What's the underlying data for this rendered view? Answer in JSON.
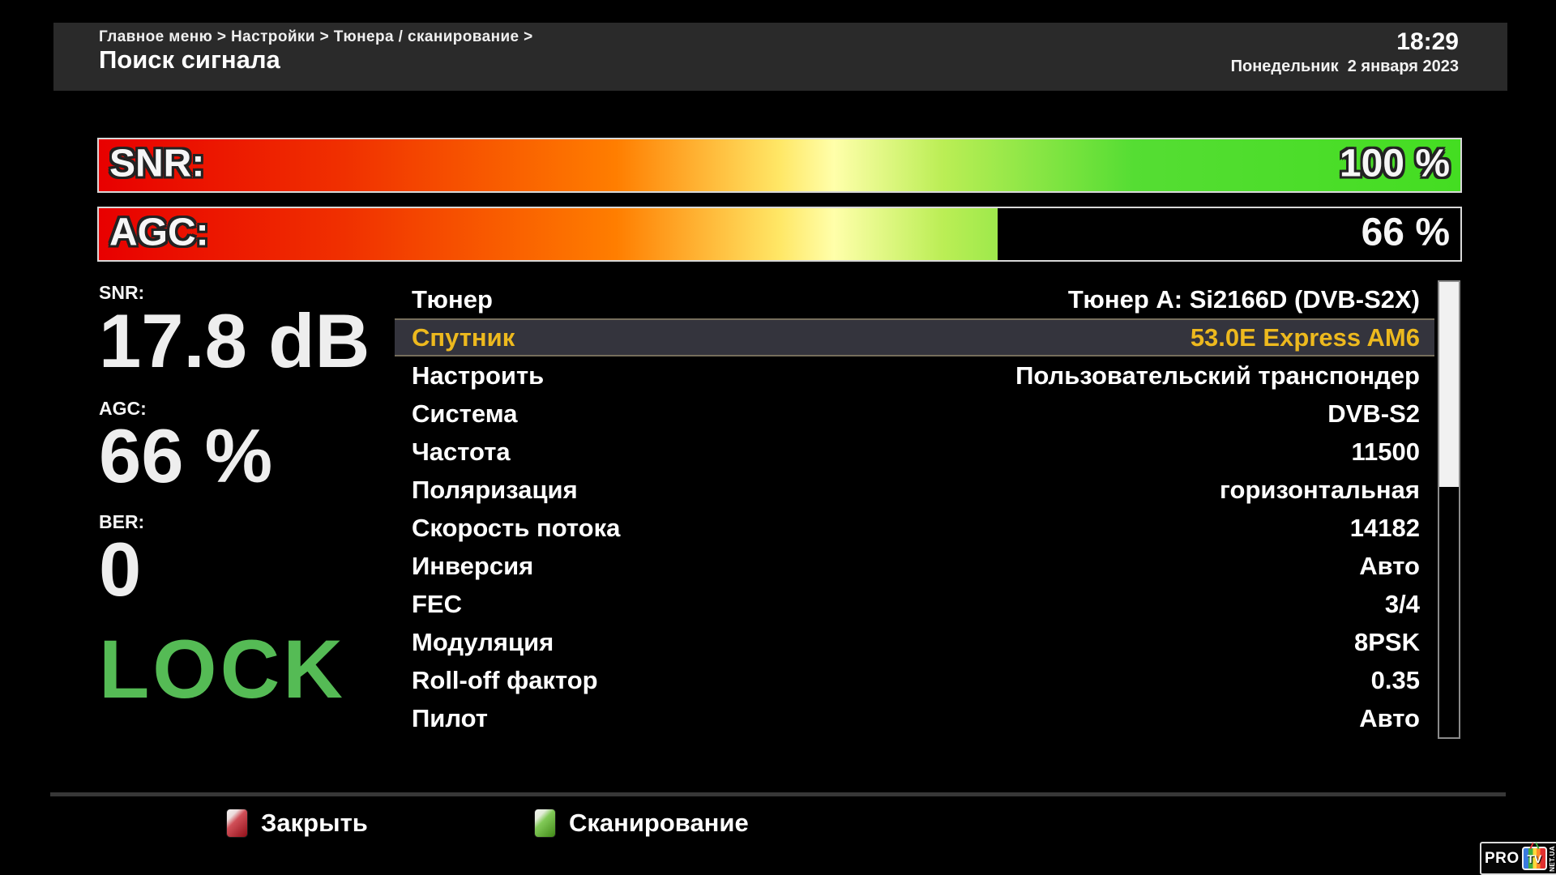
{
  "header": {
    "breadcrumb": "Главное меню > Настройки > Тюнера / сканирование >",
    "title": "Поиск сигнала",
    "time": "18:29",
    "date": "Понедельник  2 января 2023"
  },
  "signal_bars": {
    "snr": {
      "label": "SNR:",
      "value_text": "100 %",
      "percent": 100
    },
    "agc": {
      "label": "AGC:",
      "value_text": "66 %",
      "percent": 66
    }
  },
  "readouts": {
    "snr": {
      "label": "SNR:",
      "value": "17.8 dB"
    },
    "agc": {
      "label": "AGC:",
      "value": "66 %"
    },
    "ber": {
      "label": "BER:",
      "value": "0"
    },
    "lock": "LOCK"
  },
  "settings": {
    "rows": [
      {
        "label": "Тюнер",
        "value": "Тюнер A: Si2166D (DVB-S2X)",
        "selected": false
      },
      {
        "label": "Спутник",
        "value": "53.0E Express AM6",
        "selected": true
      },
      {
        "label": "Настроить",
        "value": "Пользовательский транспондер",
        "selected": false
      },
      {
        "label": "Система",
        "value": "DVB-S2",
        "selected": false
      },
      {
        "label": "Частота",
        "value": "11500",
        "selected": false
      },
      {
        "label": "Поляризация",
        "value": "горизонтальная",
        "selected": false
      },
      {
        "label": "Скорость потока",
        "value": "14182",
        "selected": false
      },
      {
        "label": "Инверсия",
        "value": "Авто",
        "selected": false
      },
      {
        "label": "FEC",
        "value": "3/4",
        "selected": false
      },
      {
        "label": "Модуляция",
        "value": "8PSK",
        "selected": false
      },
      {
        "label": "Roll-off фактор",
        "value": "0.35",
        "selected": false
      },
      {
        "label": "Пилот",
        "value": "Авто",
        "selected": false
      }
    ]
  },
  "scrollbar": {
    "thumb_percent": 45
  },
  "footer": {
    "buttons": [
      {
        "key_color": "red",
        "label": "Закрыть"
      },
      {
        "key_color": "green",
        "label": "Сканирование"
      }
    ]
  },
  "watermark": {
    "brand": "PRO",
    "tv": "TV",
    "suffix": "NET.UA"
  },
  "colors": {
    "header_bg": "#2a2a2a",
    "selected_row_bg": "#34343d",
    "selected_text": "#edb91e",
    "lock_green": "#55bb55",
    "bar_border": "#d8d8d8",
    "gradient_red": "#e80000",
    "gradient_yellow": "#ffffaa",
    "gradient_green": "#44dd22",
    "red_key": "#c11420",
    "green_key": "#57b71f"
  }
}
